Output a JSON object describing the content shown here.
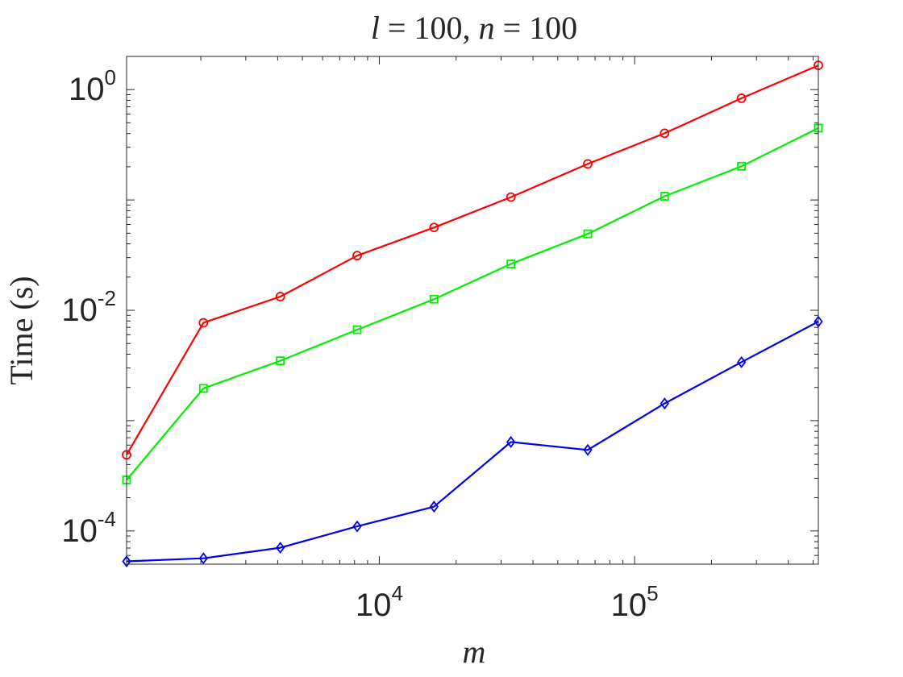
{
  "chart_data": {
    "type": "line",
    "title": "l = 100, n = 100",
    "title_parts": {
      "var1": "l",
      "val1": " = 100, ",
      "var2": "n",
      "val2": " = 100"
    },
    "xlabel": "m",
    "ylabel": "Time (s)",
    "xscale": "log",
    "yscale": "log",
    "xlim": [
      1024,
      524288
    ],
    "ylim": [
      5e-05,
      2
    ],
    "grid": false,
    "x": [
      1024,
      2048,
      4096,
      8192,
      16384,
      32768,
      65536,
      131072,
      262144,
      524288
    ],
    "x_ticks": [
      {
        "base": "10",
        "exp": "4",
        "value": 10000
      },
      {
        "base": "10",
        "exp": "5",
        "value": 100000
      }
    ],
    "y_ticks": [
      {
        "base": "10",
        "exp": "0",
        "value": 1
      },
      {
        "base": "10",
        "exp": "-2",
        "value": 0.01
      },
      {
        "base": "10",
        "exp": "-4",
        "value": 0.0001
      }
    ],
    "series": [
      {
        "color": "#ff0000",
        "marker": "circle",
        "values": [
          0.00049,
          0.0077,
          0.0133,
          0.0313,
          0.0563,
          0.106,
          0.212,
          0.402,
          0.835,
          1.66
        ]
      },
      {
        "color": "#00ee00",
        "marker": "square",
        "values": [
          0.00029,
          0.00196,
          0.00349,
          0.00667,
          0.0126,
          0.0263,
          0.0493,
          0.108,
          0.202,
          0.448
        ]
      },
      {
        "color": "#0000ee",
        "marker": "diamond",
        "values": [
          5.3e-05,
          5.65e-05,
          7.05e-05,
          0.00011,
          0.000166,
          0.00064,
          0.000542,
          0.00143,
          0.00339,
          0.0079
        ]
      }
    ]
  }
}
